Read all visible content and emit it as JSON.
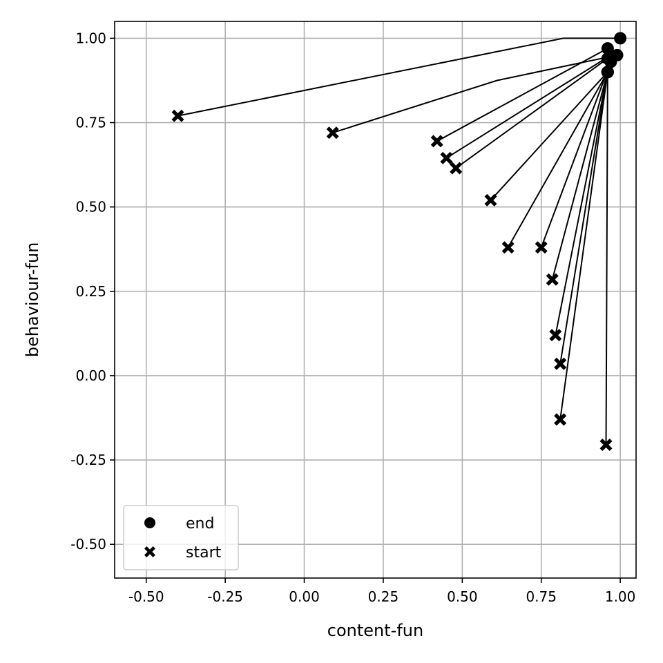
{
  "chart_data": {
    "type": "scatter",
    "title": "",
    "xlabel": "content-fun",
    "ylabel": "behaviour-fun",
    "xlim": [
      -0.6,
      1.05
    ],
    "ylim": [
      -0.6,
      1.05
    ],
    "x_ticks": [
      -0.5,
      -0.25,
      0.0,
      0.25,
      0.5,
      0.75,
      1.0
    ],
    "y_ticks": [
      -0.5,
      -0.25,
      0.0,
      0.25,
      0.5,
      0.75,
      1.0
    ],
    "x_tick_labels": [
      "-0.50",
      "-0.25",
      "0.00",
      "0.25",
      "0.50",
      "0.75",
      "1.00"
    ],
    "y_tick_labels": [
      "-0.50",
      "-0.25",
      "0.00",
      "0.25",
      "0.50",
      "0.75",
      "1.00"
    ],
    "grid": true,
    "legend_position": "bottom-left",
    "legend": [
      {
        "label": "end",
        "marker": "circle"
      },
      {
        "label": "start",
        "marker": "x"
      }
    ],
    "color": "#000000",
    "trajectories": [
      {
        "start": [
          -0.4,
          0.77
        ],
        "via": [
          [
            0.82,
            1.0
          ]
        ],
        "end": [
          1.0,
          1.0
        ]
      },
      {
        "start": [
          0.09,
          0.72
        ],
        "via": [
          [
            0.61,
            0.875
          ]
        ],
        "end": [
          0.99,
          0.95
        ]
      },
      {
        "start": [
          0.42,
          0.695
        ],
        "via": [],
        "end": [
          0.96,
          0.97
        ]
      },
      {
        "start": [
          0.45,
          0.645
        ],
        "via": [],
        "end": [
          0.97,
          0.95
        ]
      },
      {
        "start": [
          0.48,
          0.615
        ],
        "via": [],
        "end": [
          0.96,
          0.94
        ]
      },
      {
        "start": [
          0.59,
          0.52
        ],
        "via": [],
        "end": [
          0.96,
          0.9
        ]
      },
      {
        "start": [
          0.645,
          0.38
        ],
        "via": [],
        "end": [
          0.96,
          0.9
        ]
      },
      {
        "start": [
          0.75,
          0.38
        ],
        "via": [],
        "end": [
          0.97,
          0.93
        ]
      },
      {
        "start": [
          0.785,
          0.285
        ],
        "via": [],
        "end": [
          0.96,
          0.9
        ]
      },
      {
        "start": [
          0.795,
          0.12
        ],
        "via": [],
        "end": [
          0.96,
          0.9
        ]
      },
      {
        "start": [
          0.81,
          0.035
        ],
        "via": [],
        "end": [
          0.96,
          0.9
        ]
      },
      {
        "start": [
          0.81,
          -0.13
        ],
        "via": [],
        "end": [
          0.96,
          0.9
        ]
      },
      {
        "start": [
          0.955,
          -0.205
        ],
        "via": [],
        "end": [
          0.96,
          0.9
        ]
      }
    ]
  }
}
